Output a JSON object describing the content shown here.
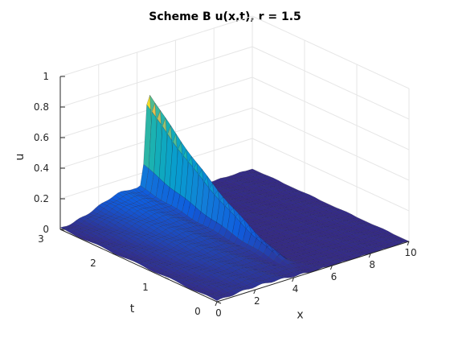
{
  "chart_data": {
    "type": "surface",
    "title": "Scheme B u(x,t), r = 1.5",
    "xlabel": "x",
    "ylabel": "t",
    "zlabel": "u",
    "xlim": [
      0,
      10
    ],
    "ylim": [
      0,
      3
    ],
    "zlim": [
      0,
      1
    ],
    "x_ticks": [
      "0",
      "2",
      "4",
      "6",
      "8",
      "10"
    ],
    "t_ticks": [
      "0",
      "1",
      "2",
      "3"
    ],
    "u_ticks": [
      "0",
      "0.2",
      "0.4",
      "0.6",
      "0.8",
      "1"
    ],
    "grid": true,
    "colormap": "parula",
    "features": {
      "ridge_along_t_at_x": 4.6,
      "ridge_peak": {
        "x": 4.6,
        "t": 3.0,
        "u": 0.68
      },
      "broad_hump_max_u": 0.12
    }
  }
}
